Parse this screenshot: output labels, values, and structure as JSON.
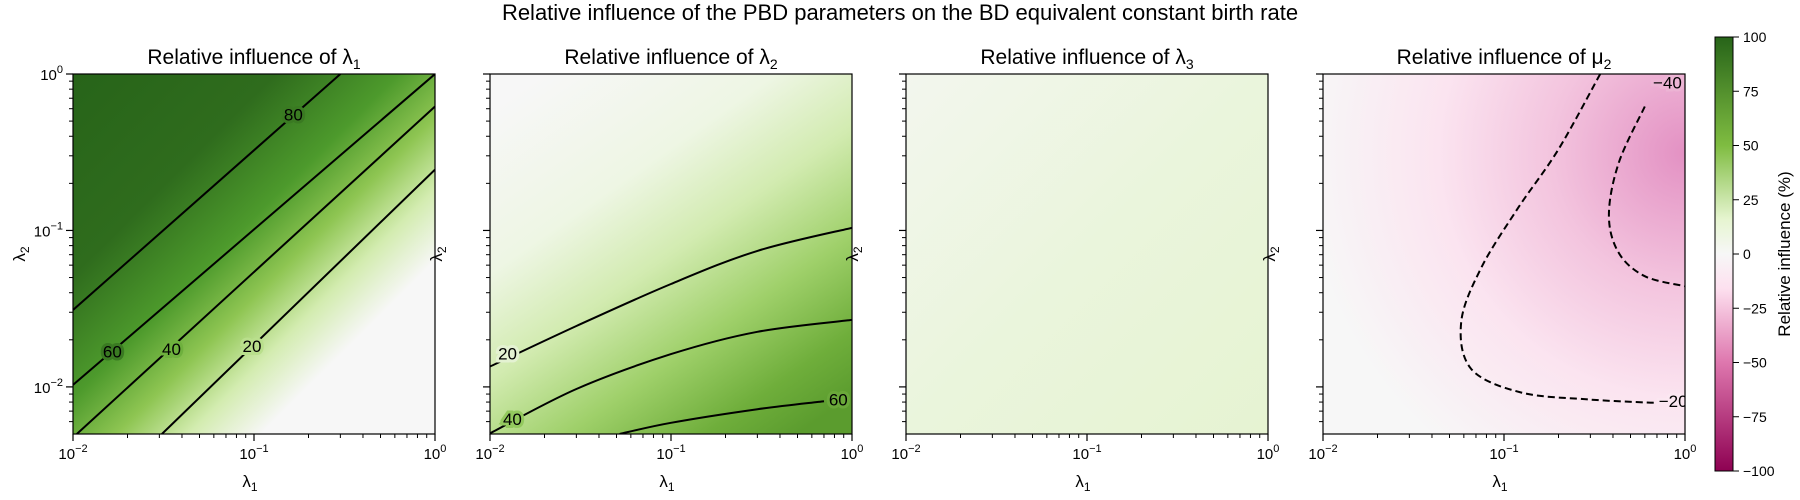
{
  "figure": {
    "suptitle": "Relative influence of the PBD parameters on the BD equivalent constant birth rate"
  },
  "chart_data": [
    {
      "type": "heatmap",
      "title": "Relative influence of λ1",
      "title_main": "Relative influence of λ",
      "title_sub": "1",
      "xlabel": "λ1",
      "xlabel_main": "λ",
      "xlabel_sub": "1",
      "ylabel": "λ2",
      "ylabel_main": "λ",
      "ylabel_sub": "2",
      "x_scale": "log",
      "y_scale": "log",
      "xlim": [
        0.01,
        1
      ],
      "ylim": [
        0.005,
        1
      ],
      "x_ticks": [
        {
          "value": 0.01,
          "base": "10",
          "exp": "−2"
        },
        {
          "value": 0.1,
          "base": "10",
          "exp": "−1"
        },
        {
          "value": 1,
          "base": "10",
          "exp": "0"
        }
      ],
      "y_ticks": [
        {
          "value": 0.01,
          "base": "10",
          "exp": "−2"
        },
        {
          "value": 0.1,
          "base": "10",
          "exp": "−1"
        },
        {
          "value": 1,
          "base": "10",
          "exp": "0"
        }
      ],
      "show_x_ticklabels": true,
      "show_y_ticklabels": true,
      "contours": [
        {
          "level": 80,
          "label": "80",
          "style": "solid",
          "points": [
            [
              0.01,
              0.031
            ],
            [
              0.3,
              1.0
            ]
          ],
          "label_pos": [
            0.165,
            0.55
          ]
        },
        {
          "level": 60,
          "label": "60",
          "style": "solid",
          "points": [
            [
              0.01,
              0.0103
            ],
            [
              1.0,
              1.0
            ]
          ],
          "label_pos": [
            0.0165,
            0.0168
          ]
        },
        {
          "level": 40,
          "label": "40",
          "style": "solid",
          "points": [
            [
              0.0105,
              0.005
            ],
            [
              1.0,
              0.62
            ]
          ],
          "label_pos": [
            0.035,
            0.0175
          ]
        },
        {
          "level": 20,
          "label": "20",
          "style": "solid",
          "points": [
            [
              0.031,
              0.005
            ],
            [
              1.0,
              0.245
            ]
          ],
          "label_pos": [
            0.0975,
            0.0183
          ]
        }
      ]
    },
    {
      "type": "heatmap",
      "title": "Relative influence of λ2",
      "title_main": "Relative influence of λ",
      "title_sub": "2",
      "xlabel": "λ1",
      "xlabel_main": "λ",
      "xlabel_sub": "1",
      "ylabel": "λ2",
      "ylabel_main": "λ",
      "ylabel_sub": "2",
      "x_scale": "log",
      "y_scale": "log",
      "xlim": [
        0.01,
        1
      ],
      "ylim": [
        0.005,
        1
      ],
      "x_ticks": [
        {
          "value": 0.01,
          "base": "10",
          "exp": "−2"
        },
        {
          "value": 0.1,
          "base": "10",
          "exp": "−1"
        },
        {
          "value": 1,
          "base": "10",
          "exp": "0"
        }
      ],
      "y_ticks": [
        {
          "value": 0.01,
          "base": "10",
          "exp": "−2"
        },
        {
          "value": 0.1,
          "base": "10",
          "exp": "−1"
        },
        {
          "value": 1,
          "base": "10",
          "exp": "0"
        }
      ],
      "show_x_ticklabels": true,
      "show_y_ticklabels": false,
      "contours": [
        {
          "level": 20,
          "label": "20",
          "style": "solid",
          "points": [
            [
              0.01,
              0.0135
            ],
            [
              0.03,
              0.0245
            ],
            [
              0.1,
              0.0455
            ],
            [
              0.3,
              0.074
            ],
            [
              1.0,
              0.104
            ]
          ],
          "label_pos": [
            0.0125,
            0.0163
          ]
        },
        {
          "level": 40,
          "label": "40",
          "style": "solid",
          "points": [
            [
              0.01,
              0.00505
            ],
            [
              0.03,
              0.0097
            ],
            [
              0.1,
              0.0162
            ],
            [
              0.3,
              0.0225
            ],
            [
              1.0,
              0.0268
            ]
          ],
          "label_pos": [
            0.0133,
            0.00625
          ]
        },
        {
          "level": 60,
          "label": "60",
          "style": "solid",
          "points": [
            [
              0.052,
              0.005
            ],
            [
              0.1,
              0.0059
            ],
            [
              0.3,
              0.0072
            ],
            [
              0.7,
              0.0081
            ]
          ],
          "label_pos": [
            0.84,
            0.0083
          ]
        }
      ]
    },
    {
      "type": "heatmap",
      "title": "Relative influence of λ3",
      "title_main": "Relative influence of λ",
      "title_sub": "3",
      "xlabel": "λ1",
      "xlabel_main": "λ",
      "xlabel_sub": "1",
      "ylabel": "λ2",
      "ylabel_main": "λ",
      "ylabel_sub": "2",
      "x_scale": "log",
      "y_scale": "log",
      "xlim": [
        0.01,
        1
      ],
      "ylim": [
        0.005,
        1
      ],
      "x_ticks": [
        {
          "value": 0.01,
          "base": "10",
          "exp": "−2"
        },
        {
          "value": 0.1,
          "base": "10",
          "exp": "−1"
        },
        {
          "value": 1,
          "base": "10",
          "exp": "0"
        }
      ],
      "y_ticks": [
        {
          "value": 0.01,
          "base": "10",
          "exp": "−2"
        },
        {
          "value": 0.1,
          "base": "10",
          "exp": "−1"
        },
        {
          "value": 1,
          "base": "10",
          "exp": "0"
        }
      ],
      "show_x_ticklabels": true,
      "show_y_ticklabels": false,
      "contours": []
    },
    {
      "type": "heatmap",
      "title": "Relative influence of μ2",
      "title_main": "Relative influence of μ",
      "title_sub": "2",
      "xlabel": "λ1",
      "xlabel_main": "λ",
      "xlabel_sub": "1",
      "ylabel": "λ2",
      "ylabel_main": "λ",
      "ylabel_sub": "2",
      "x_scale": "log",
      "y_scale": "log",
      "xlim": [
        0.01,
        1
      ],
      "ylim": [
        0.005,
        1
      ],
      "x_ticks": [
        {
          "value": 0.01,
          "base": "10",
          "exp": "−2"
        },
        {
          "value": 0.1,
          "base": "10",
          "exp": "−1"
        },
        {
          "value": 1,
          "base": "10",
          "exp": "0"
        }
      ],
      "y_ticks": [
        {
          "value": 0.01,
          "base": "10",
          "exp": "−2"
        },
        {
          "value": 0.1,
          "base": "10",
          "exp": "−1"
        },
        {
          "value": 1,
          "base": "10",
          "exp": "0"
        }
      ],
      "show_x_ticklabels": true,
      "show_y_ticklabels": false,
      "contours": [
        {
          "level": -20,
          "label": "−20",
          "style": "dashed",
          "points": [
            [
              0.34,
              1.0
            ],
            [
              0.2,
              0.33
            ],
            [
              0.12,
              0.14
            ],
            [
              0.075,
              0.058
            ],
            [
              0.058,
              0.026
            ],
            [
              0.066,
              0.013
            ],
            [
              0.125,
              0.0092
            ],
            [
              0.3,
              0.0083
            ],
            [
              0.7,
              0.0079
            ]
          ],
          "label_pos": [
            0.86,
            0.0081
          ]
        },
        {
          "level": -40,
          "label": "−40",
          "style": "dashed",
          "points": [
            [
              0.6,
              0.62
            ],
            [
              0.43,
              0.27
            ],
            [
              0.38,
              0.125
            ],
            [
              0.43,
              0.072
            ],
            [
              0.6,
              0.051
            ],
            [
              1.0,
              0.044
            ]
          ],
          "label_pos": [
            0.8,
            0.88
          ]
        }
      ]
    }
  ],
  "colorbar": {
    "label": "Relative influence (%)",
    "min": -100,
    "max": 100,
    "ticks": [
      {
        "value": 100,
        "label": "100"
      },
      {
        "value": 75,
        "label": "75"
      },
      {
        "value": 50,
        "label": "50"
      },
      {
        "value": 25,
        "label": "25"
      },
      {
        "value": 0,
        "label": "0"
      },
      {
        "value": -25,
        "label": "−25"
      },
      {
        "value": -50,
        "label": "−50"
      },
      {
        "value": -75,
        "label": "−75"
      },
      {
        "value": -100,
        "label": "−100"
      }
    ],
    "colors": {
      "negative_end": "#8e0152",
      "negative_mid": "#de77ae",
      "negative_light": "#fde0ef",
      "neutral": "#f7f7f7",
      "positive_light": "#e6f5d0",
      "positive_mid": "#7fbc41",
      "positive_end": "#276419"
    }
  }
}
